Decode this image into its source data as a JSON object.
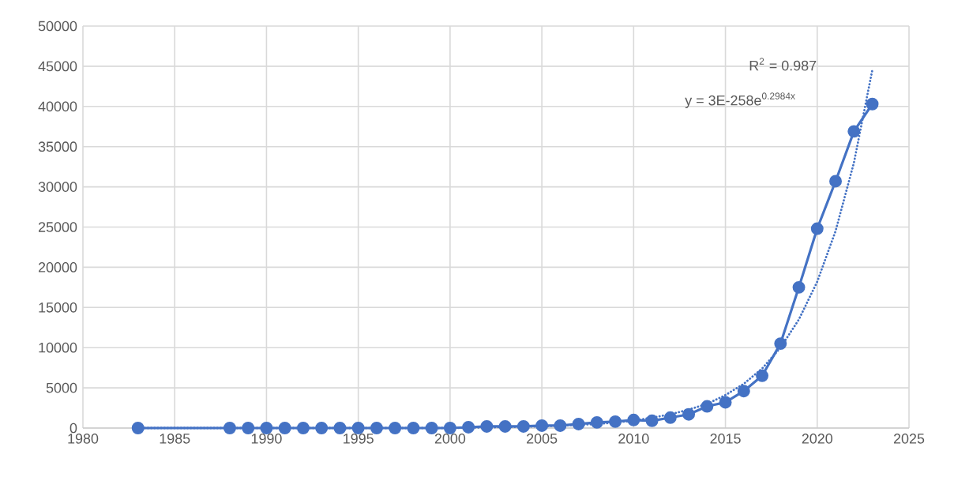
{
  "chart_data": {
    "type": "line",
    "x": [
      1983,
      1988,
      1989,
      1990,
      1991,
      1992,
      1993,
      1994,
      1995,
      1996,
      1997,
      1998,
      1999,
      2000,
      2001,
      2002,
      2003,
      2004,
      2005,
      2006,
      2007,
      2008,
      2009,
      2010,
      2011,
      2012,
      2013,
      2014,
      2015,
      2016,
      2017,
      2018,
      2019,
      2020,
      2021,
      2022,
      2023
    ],
    "series": [
      {
        "color": "#4472c4",
        "marker": "circle",
        "line_style": "solid",
        "values": [
          0,
          0,
          0,
          0,
          0,
          0,
          0,
          0,
          0,
          0,
          0,
          0,
          0,
          0,
          100,
          200,
          200,
          200,
          300,
          300,
          500,
          700,
          800,
          1000,
          900,
          1300,
          1700,
          2700,
          3200,
          4600,
          6500,
          10500,
          17500,
          24800,
          30700,
          36900,
          40300
        ]
      },
      {
        "type": "line",
        "color": "#4472c4",
        "marker": "none",
        "line_style": "dotted",
        "x": [
          1983,
          1990,
          1995,
          2000,
          2005,
          2008,
          2010,
          2011,
          2012,
          2013,
          2014,
          2015,
          2016,
          2017,
          2018,
          2019,
          2020,
          2021,
          2022,
          2023
        ],
        "values": [
          0,
          0,
          0,
          0,
          200,
          500,
          900,
          1300,
          1700,
          2300,
          3000,
          4100,
          5500,
          7400,
          10000,
          13500,
          18200,
          24500,
          33000,
          44500
        ]
      }
    ],
    "xlim": [
      1980,
      2025
    ],
    "xticks": [
      1980,
      1985,
      1990,
      1995,
      2000,
      2005,
      2010,
      2015,
      2020,
      2025
    ],
    "ylim": [
      0,
      50000
    ],
    "yticks": [
      0,
      5000,
      10000,
      15000,
      20000,
      25000,
      30000,
      35000,
      40000,
      45000,
      50000
    ],
    "grid": true,
    "annotations": [
      "R$^{2}$ = 0.987",
      "y = 3E-258e$^{0.2984x}$"
    ]
  }
}
